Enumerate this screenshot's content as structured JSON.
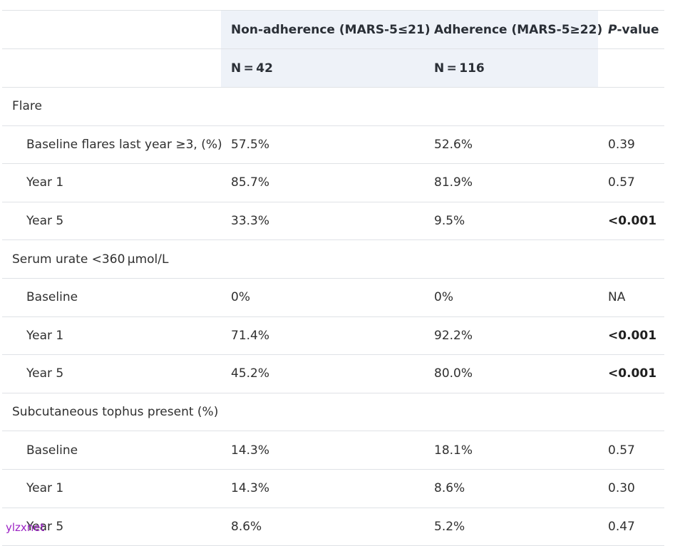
{
  "table": {
    "header": {
      "col1": "",
      "col2": "Non-adherence (MARS-5≤21)",
      "col3": "Adherence (MARS-5≥22)",
      "col4_italic": "P",
      "col4_rest": "-value",
      "n2": "N = 42",
      "n3": "N = 116"
    },
    "rows": [
      {
        "type": "section",
        "label": "Flare"
      },
      {
        "type": "data",
        "label": "Baseline flares last year ≥3, (%)",
        "v1": "57.5%",
        "v2": "52.6%",
        "p": "0.39",
        "p_bold": false
      },
      {
        "type": "data",
        "label": "Year 1",
        "v1": "85.7%",
        "v2": "81.9%",
        "p": "0.57",
        "p_bold": false
      },
      {
        "type": "data",
        "label": "Year 5",
        "v1": "33.3%",
        "v2": "9.5%",
        "p": "<0.001",
        "p_bold": true
      },
      {
        "type": "section",
        "label": "Serum urate <360 μmol/L"
      },
      {
        "type": "data",
        "label": "Baseline",
        "v1": "0%",
        "v2": "0%",
        "p": "NA",
        "p_bold": false
      },
      {
        "type": "data",
        "label": "Year 1",
        "v1": "71.4%",
        "v2": "92.2%",
        "p": "<0.001",
        "p_bold": true
      },
      {
        "type": "data",
        "label": "Year 5",
        "v1": "45.2%",
        "v2": "80.0%",
        "p": "<0.001",
        "p_bold": true
      },
      {
        "type": "section",
        "label": "Subcutaneous tophus present (%)"
      },
      {
        "type": "data",
        "label": "Baseline",
        "v1": "14.3%",
        "v2": "18.1%",
        "p": "0.57",
        "p_bold": false
      },
      {
        "type": "data",
        "label": "Year 1",
        "v1": "14.3%",
        "v2": "8.6%",
        "p": "0.30",
        "p_bold": false
      },
      {
        "type": "data",
        "label": "Year 5",
        "v1": "8.6%",
        "v2": "5.2%",
        "p": "0.47",
        "p_bold": false
      }
    ]
  },
  "watermark": "ylzxnet",
  "colors": {
    "header_shade": "#eef2f8",
    "border": "#dfe2e6",
    "watermark": "#9b22c4"
  }
}
